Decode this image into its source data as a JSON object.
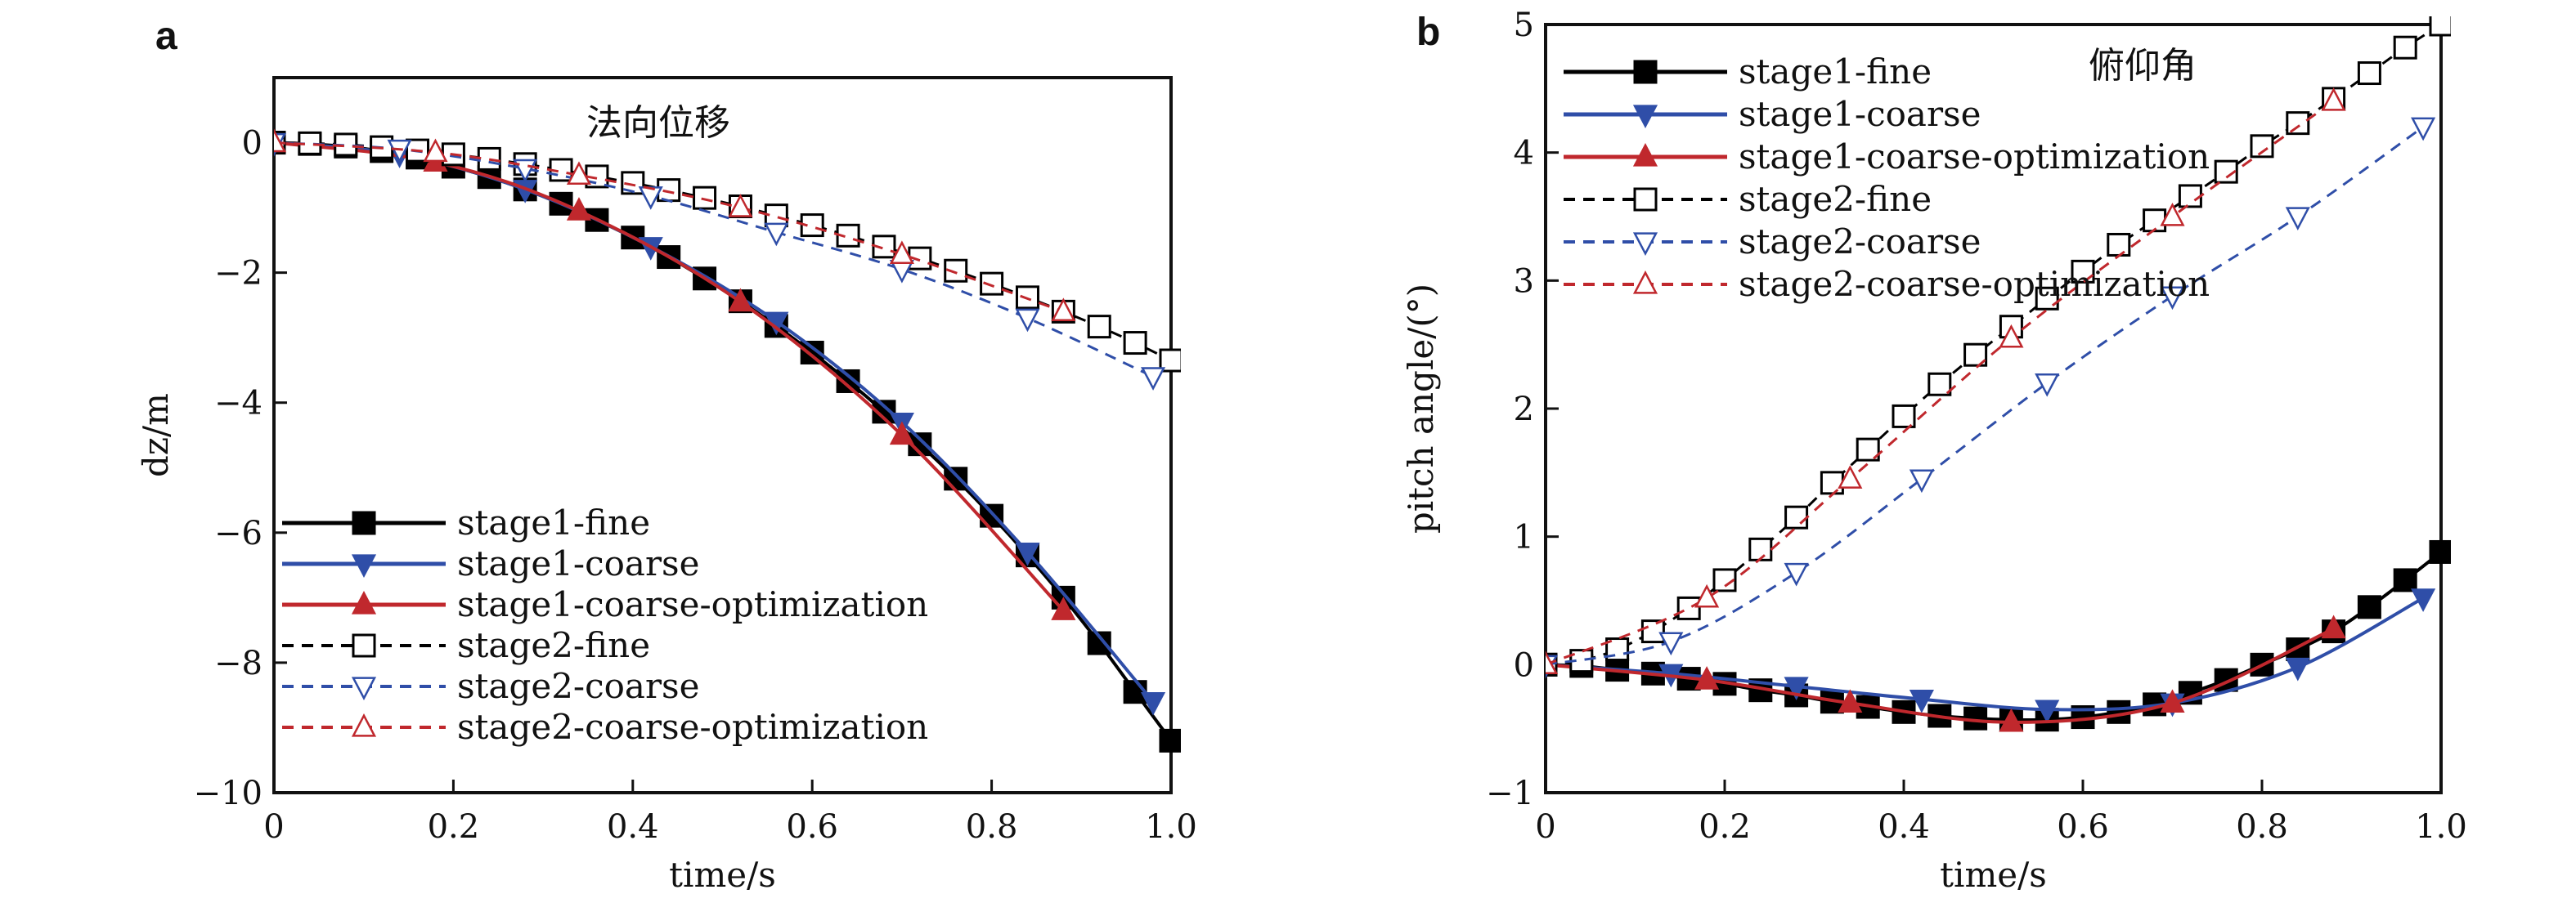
{
  "chart_data": [
    {
      "type": "line",
      "panel_label": "a",
      "annotation": "法向位移",
      "xlabel": "time/s",
      "ylabel": "dz/m",
      "xlim": [
        0,
        1.0
      ],
      "ylim": [
        -10,
        1
      ],
      "xticks": [
        0,
        0.2,
        0.4,
        0.6,
        0.8,
        1.0
      ],
      "xtick_labels": [
        "0",
        "0.2",
        "0.4",
        "0.6",
        "0.8",
        "1.0"
      ],
      "yticks": [
        0,
        -2,
        -4,
        -6,
        -8,
        -10
      ],
      "ytick_labels": [
        "0",
        "−2",
        "−4",
        "−6",
        "−8",
        "−10"
      ],
      "grid": false,
      "legend_position": "lower-left",
      "series": [
        {
          "name": "stage1-fine",
          "color": "#000000",
          "dash": "solid",
          "marker": "square-filled",
          "x": [
            0,
            0.04,
            0.08,
            0.12,
            0.16,
            0.2,
            0.24,
            0.28,
            0.32,
            0.36,
            0.4,
            0.44,
            0.48,
            0.52,
            0.56,
            0.6,
            0.64,
            0.68,
            0.72,
            0.76,
            0.8,
            0.84,
            0.88,
            0.92,
            0.96,
            1.0
          ],
          "y": [
            0,
            -0.02,
            -0.06,
            -0.13,
            -0.23,
            -0.37,
            -0.53,
            -0.72,
            -0.94,
            -1.19,
            -1.46,
            -1.76,
            -2.09,
            -2.44,
            -2.82,
            -3.23,
            -3.67,
            -4.14,
            -4.64,
            -5.17,
            -5.74,
            -6.35,
            -7.0,
            -7.7,
            -8.45,
            -9.2
          ]
        },
        {
          "name": "stage1-coarse",
          "color": "#2f4ea8",
          "dash": "solid",
          "marker": "triangle-down-filled",
          "x": [
            0,
            0.14,
            0.28,
            0.42,
            0.56,
            0.7,
            0.84,
            0.98
          ],
          "y": [
            0,
            -0.18,
            -0.72,
            -1.6,
            -2.75,
            -4.3,
            -6.3,
            -8.6
          ]
        },
        {
          "name": "stage1-coarse-optimization",
          "color": "#c0282d",
          "dash": "solid",
          "marker": "triangle-up-filled",
          "x": [
            0,
            0.18,
            0.34,
            0.52,
            0.7,
            0.88
          ],
          "y": [
            0,
            -0.3,
            -1.05,
            -2.45,
            -4.5,
            -7.2
          ]
        },
        {
          "name": "stage2-fine",
          "color": "#000000",
          "dash": "dashed",
          "marker": "square-open",
          "x": [
            0,
            0.04,
            0.08,
            0.12,
            0.16,
            0.2,
            0.24,
            0.28,
            0.32,
            0.36,
            0.4,
            0.44,
            0.48,
            0.52,
            0.56,
            0.6,
            0.64,
            0.68,
            0.72,
            0.76,
            0.8,
            0.84,
            0.88,
            0.92,
            0.96,
            1.0
          ],
          "y": [
            0,
            -0.01,
            -0.03,
            -0.07,
            -0.12,
            -0.18,
            -0.25,
            -0.33,
            -0.42,
            -0.52,
            -0.62,
            -0.73,
            -0.85,
            -0.98,
            -1.12,
            -1.27,
            -1.43,
            -1.6,
            -1.78,
            -1.97,
            -2.17,
            -2.38,
            -2.6,
            -2.83,
            -3.08,
            -3.35
          ]
        },
        {
          "name": "stage2-coarse",
          "color": "#2f4ea8",
          "dash": "dashed",
          "marker": "triangle-down-open",
          "x": [
            0,
            0.14,
            0.28,
            0.42,
            0.56,
            0.7,
            0.84,
            0.98
          ],
          "y": [
            0,
            -0.1,
            -0.4,
            -0.82,
            -1.38,
            -1.95,
            -2.7,
            -3.6
          ]
        },
        {
          "name": "stage2-coarse-optimization",
          "color": "#c0282d",
          "dash": "dashed",
          "marker": "triangle-up-open",
          "x": [
            0,
            0.18,
            0.34,
            0.52,
            0.7,
            0.88
          ],
          "y": [
            0,
            -0.15,
            -0.5,
            -1.0,
            -1.72,
            -2.6
          ]
        }
      ]
    },
    {
      "type": "line",
      "panel_label": "b",
      "annotation": "俯仰角",
      "xlabel": "time/s",
      "ylabel": "pitch angle/(°)",
      "xlim": [
        0,
        1.0
      ],
      "ylim": [
        -1,
        5
      ],
      "xticks": [
        0,
        0.2,
        0.4,
        0.6,
        0.8,
        1.0
      ],
      "xtick_labels": [
        "0",
        "0.2",
        "0.4",
        "0.6",
        "0.8",
        "1.0"
      ],
      "yticks": [
        -1,
        0,
        1,
        2,
        3,
        4,
        5
      ],
      "ytick_labels": [
        "−1",
        "0",
        "1",
        "2",
        "3",
        "4",
        "5"
      ],
      "grid": false,
      "legend_position": "top-left",
      "series": [
        {
          "name": "stage1-fine",
          "color": "#000000",
          "dash": "solid",
          "marker": "square-filled",
          "x": [
            0,
            0.04,
            0.08,
            0.12,
            0.16,
            0.2,
            0.24,
            0.28,
            0.32,
            0.36,
            0.4,
            0.44,
            0.48,
            0.52,
            0.56,
            0.6,
            0.64,
            0.68,
            0.72,
            0.76,
            0.8,
            0.84,
            0.88,
            0.92,
            0.96,
            1.0
          ],
          "y": [
            0,
            -0.01,
            -0.04,
            -0.07,
            -0.11,
            -0.15,
            -0.2,
            -0.24,
            -0.29,
            -0.33,
            -0.37,
            -0.4,
            -0.42,
            -0.43,
            -0.43,
            -0.41,
            -0.37,
            -0.31,
            -0.22,
            -0.12,
            0.0,
            0.12,
            0.26,
            0.45,
            0.66,
            0.88
          ]
        },
        {
          "name": "stage1-coarse",
          "color": "#2f4ea8",
          "dash": "solid",
          "marker": "triangle-down-filled",
          "x": [
            0,
            0.14,
            0.28,
            0.42,
            0.56,
            0.7,
            0.84,
            0.98
          ],
          "y": [
            0,
            -0.07,
            -0.17,
            -0.27,
            -0.35,
            -0.3,
            -0.02,
            0.52
          ]
        },
        {
          "name": "stage1-coarse-optimization",
          "color": "#c0282d",
          "dash": "solid",
          "marker": "triangle-up-filled",
          "x": [
            0,
            0.18,
            0.34,
            0.52,
            0.7,
            0.88
          ],
          "y": [
            0,
            -0.12,
            -0.3,
            -0.45,
            -0.3,
            0.28
          ]
        },
        {
          "name": "stage2-fine",
          "color": "#000000",
          "dash": "dashed",
          "marker": "square-open",
          "x": [
            0,
            0.04,
            0.08,
            0.12,
            0.16,
            0.2,
            0.24,
            0.28,
            0.32,
            0.36,
            0.4,
            0.44,
            0.48,
            0.52,
            0.56,
            0.6,
            0.64,
            0.68,
            0.72,
            0.76,
            0.8,
            0.84,
            0.88,
            0.92,
            0.96,
            1.0
          ],
          "y": [
            0,
            0.03,
            0.12,
            0.26,
            0.44,
            0.66,
            0.9,
            1.15,
            1.42,
            1.68,
            1.94,
            2.19,
            2.42,
            2.64,
            2.86,
            3.07,
            3.28,
            3.47,
            3.66,
            3.85,
            4.05,
            4.23,
            4.42,
            4.62,
            4.82,
            5.0
          ]
        },
        {
          "name": "stage2-coarse",
          "color": "#2f4ea8",
          "dash": "dashed",
          "marker": "triangle-down-open",
          "x": [
            0,
            0.14,
            0.28,
            0.42,
            0.56,
            0.7,
            0.84,
            0.98
          ],
          "y": [
            0,
            0.18,
            0.72,
            1.45,
            2.2,
            2.88,
            3.5,
            4.2
          ]
        },
        {
          "name": "stage2-coarse-optimization",
          "color": "#c0282d",
          "dash": "dashed",
          "marker": "triangle-up-open",
          "x": [
            0,
            0.18,
            0.34,
            0.52,
            0.7,
            0.88
          ],
          "y": [
            0,
            0.52,
            1.45,
            2.55,
            3.5,
            4.4
          ]
        }
      ]
    }
  ]
}
